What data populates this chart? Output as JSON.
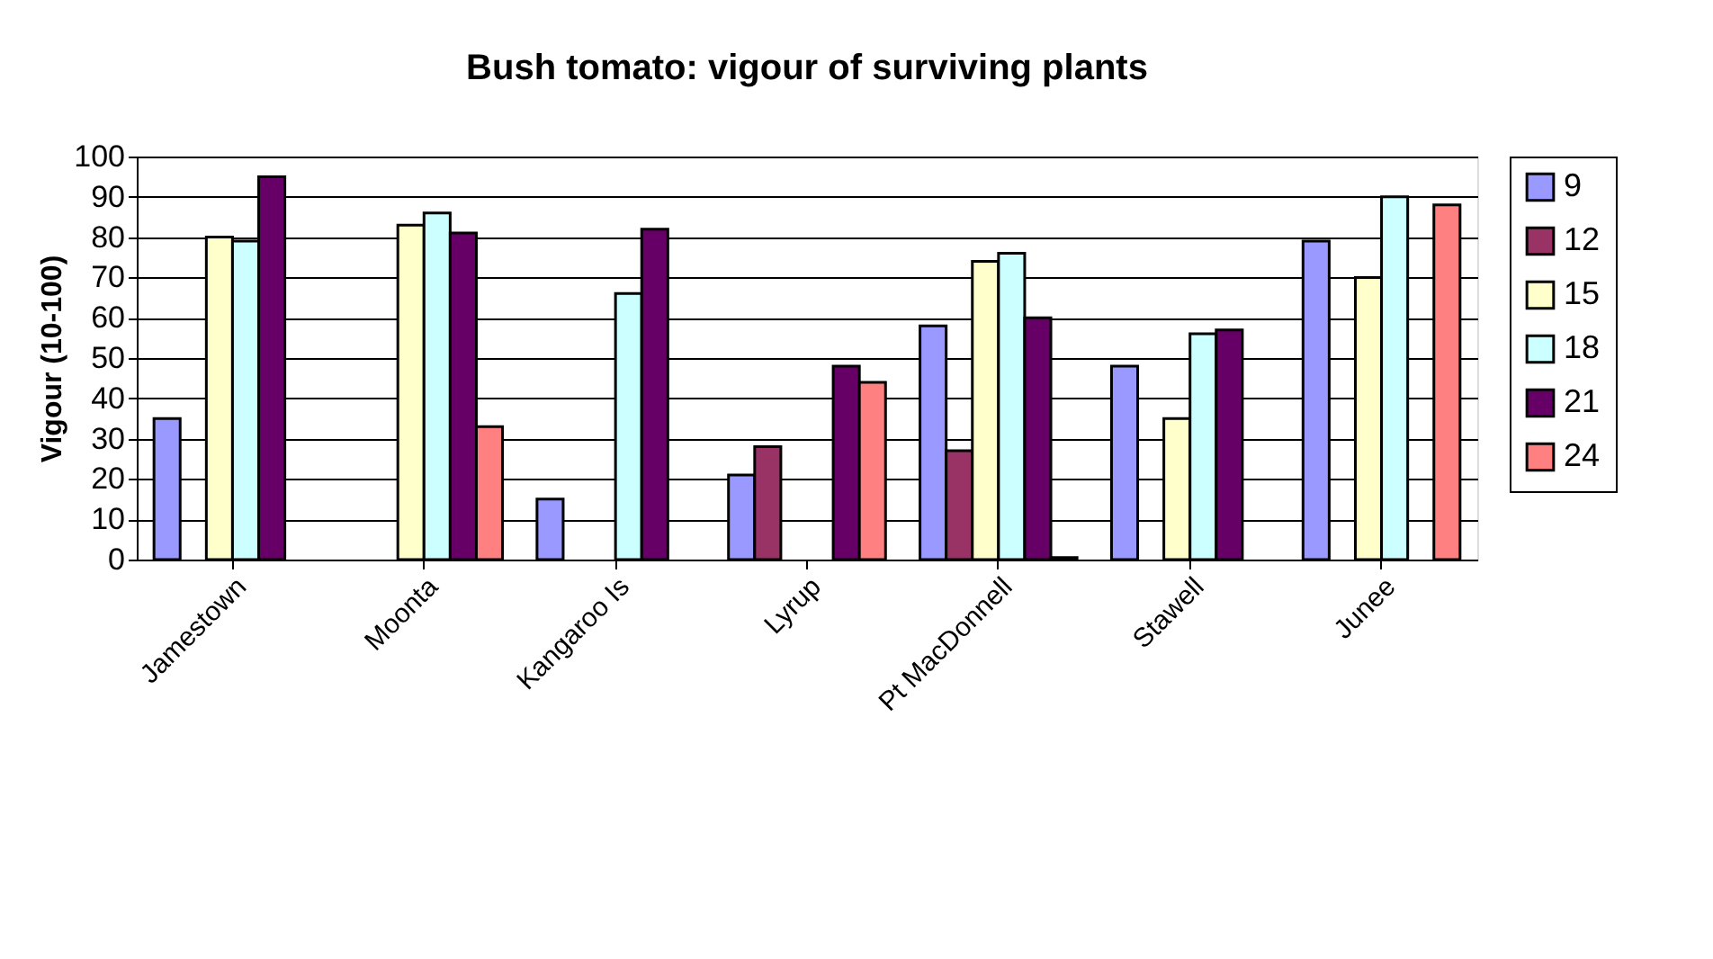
{
  "chart_data": {
    "type": "bar",
    "title": "Bush tomato: vigour of surviving plants",
    "ylabel": "Vigour (10-100)",
    "categories": [
      "Jamestown",
      "Moonta",
      "Kangaroo Is",
      "Lyrup",
      "Pt MacDonnell",
      "Stawell",
      "Junee"
    ],
    "series": [
      {
        "name": "9",
        "color": "#9999ff",
        "values": [
          35,
          null,
          15,
          21,
          58,
          48,
          79
        ]
      },
      {
        "name": "12",
        "color": "#993366",
        "values": [
          null,
          null,
          null,
          28,
          27,
          null,
          null
        ]
      },
      {
        "name": "15",
        "color": "#ffffcc",
        "values": [
          80,
          83,
          null,
          null,
          74,
          35,
          70
        ]
      },
      {
        "name": "18",
        "color": "#ccffff",
        "values": [
          79,
          86,
          66,
          null,
          76,
          56,
          90
        ]
      },
      {
        "name": "21",
        "color": "#660066",
        "values": [
          95,
          81,
          82,
          48,
          60,
          57,
          null
        ]
      },
      {
        "name": "24",
        "color": "#ff8080",
        "values": [
          null,
          33,
          null,
          44,
          0.5,
          null,
          88
        ]
      }
    ],
    "ylim": [
      0,
      100
    ],
    "yticks": [
      0,
      10,
      20,
      30,
      40,
      50,
      60,
      70,
      80,
      90,
      100
    ],
    "grid": "y",
    "legend": "right"
  }
}
